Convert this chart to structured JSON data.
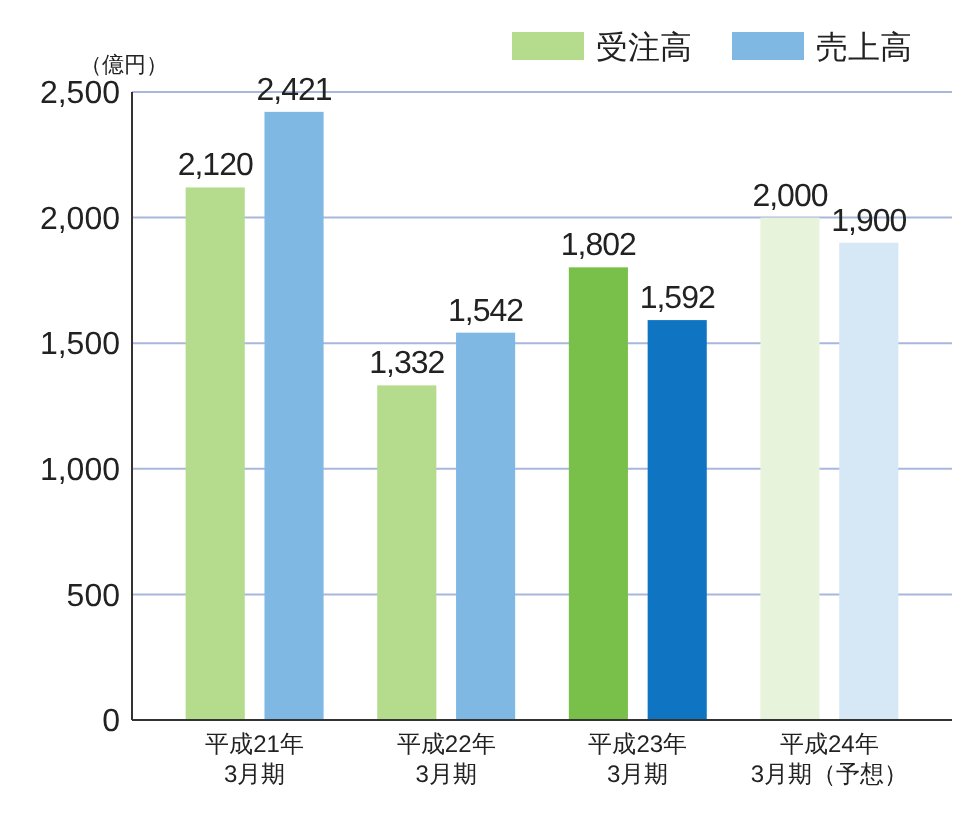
{
  "chart_data": {
    "type": "bar",
    "ylabel": "（億円）",
    "categories": [
      "平成21年\n3月期",
      "平成22年\n3月期",
      "平成23年\n3月期",
      "平成24年\n3月期（予想）"
    ],
    "series": [
      {
        "name": "受注高",
        "color": "#b5db8c",
        "colors": [
          "#b5db8c",
          "#b5db8c",
          "#78c04a",
          "#e8f3dc"
        ],
        "values": [
          2120,
          1332,
          1802,
          2000
        ],
        "value_labels": [
          "2,120",
          "1,332",
          "1,802",
          "2,000"
        ]
      },
      {
        "name": "売上高",
        "color": "#80b8e4",
        "colors": [
          "#80b8e4",
          "#80b8e4",
          "#0f74c2",
          "#d6e7f6"
        ],
        "values": [
          2421,
          1542,
          1592,
          1900
        ],
        "value_labels": [
          "2,421",
          "1,542",
          "1,592",
          "1,900"
        ]
      }
    ],
    "ylim": [
      0,
      2500
    ],
    "yticks": [
      {
        "value": 0,
        "label": "0"
      },
      {
        "value": 500,
        "label": "500"
      },
      {
        "value": 1000,
        "label": "1,000"
      },
      {
        "value": 1500,
        "label": "1,500"
      },
      {
        "value": 2000,
        "label": "2,000"
      },
      {
        "value": 2500,
        "label": "2,500"
      }
    ],
    "grid": "y",
    "legend": "top right"
  }
}
